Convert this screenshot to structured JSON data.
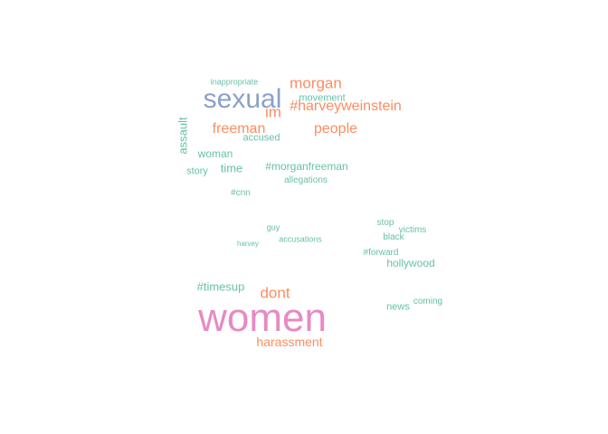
{
  "cloud": {
    "words": [
      "women",
      "sexual",
      "harassment",
      "freeman",
      "people",
      "morgan",
      "#harveyweinstein",
      "dont",
      "im",
      "#morganfreeman",
      "assault",
      "time",
      "#timesup",
      "hollywood",
      "woman",
      "story",
      "accused",
      "movement",
      "inappropriate",
      "allegations",
      "news",
      "coming",
      "victims",
      "#forward",
      "black",
      "stop",
      "#cnn",
      "accusations",
      "harvey",
      "guy"
    ]
  }
}
